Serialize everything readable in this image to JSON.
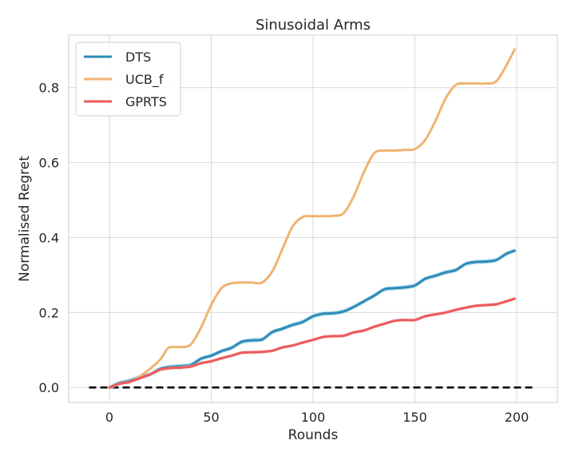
{
  "chart_data": {
    "type": "line",
    "title": "Sinusoidal Arms",
    "xlabel": "Rounds",
    "ylabel": "Normalised Regret",
    "xlim": [
      -20,
      220
    ],
    "ylim": [
      -0.04,
      0.94
    ],
    "xticks": [
      0,
      50,
      100,
      150,
      200
    ],
    "yticks": [
      0.0,
      0.2,
      0.4,
      0.6,
      0.8
    ],
    "xtick_labels": [
      "0",
      "50",
      "100",
      "150",
      "200"
    ],
    "ytick_labels": [
      "0.0",
      "0.2",
      "0.4",
      "0.6",
      "0.8"
    ],
    "grid": true,
    "legend_position": "top-left",
    "baseline": {
      "y": 0.0,
      "x_range": [
        -10,
        209
      ],
      "style": "dashed",
      "color": "#000000"
    },
    "series": [
      {
        "name": "DTS",
        "color": "#2e8bb7",
        "band_color": "#a8d8e8",
        "x": [
          0,
          5,
          10,
          15,
          20,
          25,
          30,
          35,
          40,
          45,
          50,
          55,
          60,
          65,
          70,
          75,
          80,
          85,
          90,
          95,
          100,
          105,
          110,
          115,
          120,
          125,
          130,
          135,
          140,
          145,
          150,
          155,
          160,
          165,
          170,
          175,
          180,
          185,
          190,
          195,
          199
        ],
        "y": [
          0.0,
          0.012,
          0.018,
          0.028,
          0.035,
          0.05,
          0.055,
          0.057,
          0.06,
          0.077,
          0.085,
          0.097,
          0.106,
          0.122,
          0.126,
          0.128,
          0.148,
          0.157,
          0.167,
          0.175,
          0.19,
          0.197,
          0.198,
          0.203,
          0.215,
          0.23,
          0.245,
          0.262,
          0.265,
          0.267,
          0.272,
          0.29,
          0.298,
          0.307,
          0.313,
          0.33,
          0.335,
          0.336,
          0.34,
          0.357,
          0.365
        ],
        "band": 0.006
      },
      {
        "name": "UCB_f",
        "color": "#f0b370",
        "x": [
          0,
          5,
          10,
          15,
          20,
          25,
          28,
          30,
          35,
          40,
          45,
          50,
          55,
          60,
          65,
          70,
          75,
          80,
          85,
          90,
          95,
          100,
          105,
          110,
          115,
          120,
          125,
          130,
          135,
          140,
          145,
          150,
          155,
          160,
          165,
          170,
          175,
          180,
          185,
          190,
          195,
          199
        ],
        "y": [
          0.0,
          0.01,
          0.015,
          0.03,
          0.05,
          0.075,
          0.1,
          0.108,
          0.108,
          0.115,
          0.16,
          0.22,
          0.265,
          0.278,
          0.28,
          0.28,
          0.28,
          0.31,
          0.37,
          0.43,
          0.455,
          0.457,
          0.457,
          0.458,
          0.465,
          0.51,
          0.575,
          0.625,
          0.632,
          0.632,
          0.634,
          0.636,
          0.66,
          0.71,
          0.77,
          0.807,
          0.811,
          0.811,
          0.811,
          0.817,
          0.86,
          0.902
        ]
      },
      {
        "name": "GPRTS",
        "color": "#ee5a5a",
        "band_color": "#f5b0b0",
        "x": [
          0,
          5,
          10,
          15,
          20,
          25,
          30,
          35,
          40,
          45,
          50,
          55,
          60,
          65,
          70,
          75,
          80,
          85,
          90,
          95,
          100,
          105,
          110,
          115,
          120,
          125,
          130,
          135,
          140,
          145,
          150,
          155,
          160,
          165,
          170,
          175,
          180,
          185,
          190,
          195,
          199
        ],
        "y": [
          0.0,
          0.01,
          0.015,
          0.025,
          0.035,
          0.048,
          0.052,
          0.053,
          0.056,
          0.065,
          0.07,
          0.078,
          0.085,
          0.093,
          0.094,
          0.095,
          0.098,
          0.107,
          0.112,
          0.12,
          0.127,
          0.135,
          0.137,
          0.138,
          0.147,
          0.152,
          0.162,
          0.17,
          0.178,
          0.18,
          0.18,
          0.19,
          0.195,
          0.2,
          0.207,
          0.213,
          0.218,
          0.22,
          0.222,
          0.23,
          0.237
        ],
        "band": 0.004
      }
    ]
  }
}
